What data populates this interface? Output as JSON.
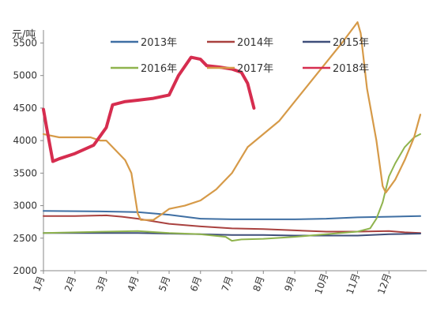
{
  "chart_data": {
    "type": "line",
    "title": "",
    "ylabel": "元/吨",
    "xlabel": "",
    "ylim": [
      2000,
      5700
    ],
    "yticks": [
      2000,
      2500,
      3000,
      3500,
      4000,
      4500,
      5000,
      5500
    ],
    "xlim": [
      1,
      13.2
    ],
    "xticks": [
      {
        "x": 1,
        "label": "1月"
      },
      {
        "x": 2,
        "label": "2月"
      },
      {
        "x": 3,
        "label": "3月"
      },
      {
        "x": 4,
        "label": "4月"
      },
      {
        "x": 5,
        "label": "5月"
      },
      {
        "x": 6,
        "label": "6月"
      },
      {
        "x": 7,
        "label": "7月"
      },
      {
        "x": 8,
        "label": "8月"
      },
      {
        "x": 9,
        "label": "9月"
      },
      {
        "x": 10,
        "label": "10月"
      },
      {
        "x": 11,
        "label": "11月"
      },
      {
        "x": 12,
        "label": "12月"
      }
    ],
    "grid": false,
    "legend_position": "top",
    "series": [
      {
        "name": "2013年",
        "color": "#3f6fa3",
        "width": 2,
        "points": [
          [
            1,
            2920
          ],
          [
            3,
            2910
          ],
          [
            4,
            2900
          ],
          [
            5,
            2860
          ],
          [
            6,
            2800
          ],
          [
            7,
            2790
          ],
          [
            8,
            2790
          ],
          [
            9,
            2790
          ],
          [
            10,
            2800
          ],
          [
            11,
            2820
          ],
          [
            12,
            2830
          ],
          [
            13,
            2840
          ]
        ]
      },
      {
        "name": "2014年",
        "color": "#a9413f",
        "width": 2,
        "points": [
          [
            1,
            2840
          ],
          [
            2,
            2840
          ],
          [
            3,
            2850
          ],
          [
            3.5,
            2830
          ],
          [
            4,
            2800
          ],
          [
            4.5,
            2760
          ],
          [
            5,
            2720
          ],
          [
            6,
            2680
          ],
          [
            7,
            2650
          ],
          [
            8,
            2640
          ],
          [
            9,
            2620
          ],
          [
            10,
            2600
          ],
          [
            11,
            2600
          ],
          [
            12,
            2610
          ],
          [
            12.5,
            2590
          ],
          [
            13,
            2580
          ]
        ]
      },
      {
        "name": "2015年",
        "color": "#3f4f7a",
        "width": 2,
        "points": [
          [
            1,
            2580
          ],
          [
            3,
            2580
          ],
          [
            4,
            2580
          ],
          [
            5,
            2570
          ],
          [
            6,
            2560
          ],
          [
            7,
            2550
          ],
          [
            8,
            2550
          ],
          [
            9,
            2540
          ],
          [
            10,
            2540
          ],
          [
            11,
            2540
          ],
          [
            12,
            2560
          ],
          [
            13,
            2570
          ]
        ]
      },
      {
        "name": "2016年",
        "color": "#8fb34d",
        "width": 2,
        "points": [
          [
            1,
            2580
          ],
          [
            2,
            2590
          ],
          [
            3,
            2600
          ],
          [
            4,
            2610
          ],
          [
            5,
            2580
          ],
          [
            6,
            2560
          ],
          [
            6.8,
            2520
          ],
          [
            7,
            2460
          ],
          [
            7.3,
            2480
          ],
          [
            8,
            2490
          ],
          [
            9,
            2520
          ],
          [
            10,
            2560
          ],
          [
            11,
            2600
          ],
          [
            11.4,
            2650
          ],
          [
            11.6,
            2800
          ],
          [
            11.8,
            3050
          ],
          [
            12,
            3450
          ],
          [
            12.2,
            3650
          ],
          [
            12.5,
            3900
          ],
          [
            12.8,
            4050
          ],
          [
            13,
            4100
          ]
        ]
      },
      {
        "name": "2017年",
        "color": "#d69a48",
        "width": 2.2,
        "points": [
          [
            1,
            4100
          ],
          [
            1.5,
            4050
          ],
          [
            2,
            4050
          ],
          [
            2.5,
            4050
          ],
          [
            2.8,
            4000
          ],
          [
            3,
            4000
          ],
          [
            3.2,
            3900
          ],
          [
            3.6,
            3700
          ],
          [
            3.8,
            3500
          ],
          [
            4,
            2880
          ],
          [
            4.1,
            2780
          ],
          [
            4.5,
            2780
          ],
          [
            4.8,
            2880
          ],
          [
            5,
            2950
          ],
          [
            5.5,
            3000
          ],
          [
            6,
            3080
          ],
          [
            6.5,
            3250
          ],
          [
            7,
            3500
          ],
          [
            7.5,
            3900
          ],
          [
            8,
            4100
          ],
          [
            8.5,
            4300
          ],
          [
            9,
            4600
          ],
          [
            9.5,
            4900
          ],
          [
            10,
            5200
          ],
          [
            10.5,
            5500
          ],
          [
            11,
            5820
          ],
          [
            11.1,
            5650
          ],
          [
            11.3,
            4800
          ],
          [
            11.6,
            4000
          ],
          [
            11.8,
            3300
          ],
          [
            11.9,
            3200
          ],
          [
            12.2,
            3400
          ],
          [
            12.5,
            3700
          ],
          [
            12.8,
            4050
          ],
          [
            13,
            4400
          ]
        ]
      },
      {
        "name": "2018年",
        "color": "#d62d4f",
        "width": 4,
        "points": [
          [
            1,
            4480
          ],
          [
            1.1,
            4200
          ],
          [
            1.3,
            3680
          ],
          [
            1.5,
            3720
          ],
          [
            2,
            3800
          ],
          [
            2.6,
            3930
          ],
          [
            3,
            4200
          ],
          [
            3.2,
            4550
          ],
          [
            3.6,
            4600
          ],
          [
            4,
            4620
          ],
          [
            4.5,
            4650
          ],
          [
            5,
            4700
          ],
          [
            5.3,
            5000
          ],
          [
            5.7,
            5280
          ],
          [
            6,
            5250
          ],
          [
            6.2,
            5150
          ],
          [
            6.6,
            5130
          ],
          [
            7,
            5100
          ],
          [
            7.3,
            5050
          ],
          [
            7.5,
            4880
          ],
          [
            7.7,
            4500
          ]
        ]
      }
    ]
  }
}
